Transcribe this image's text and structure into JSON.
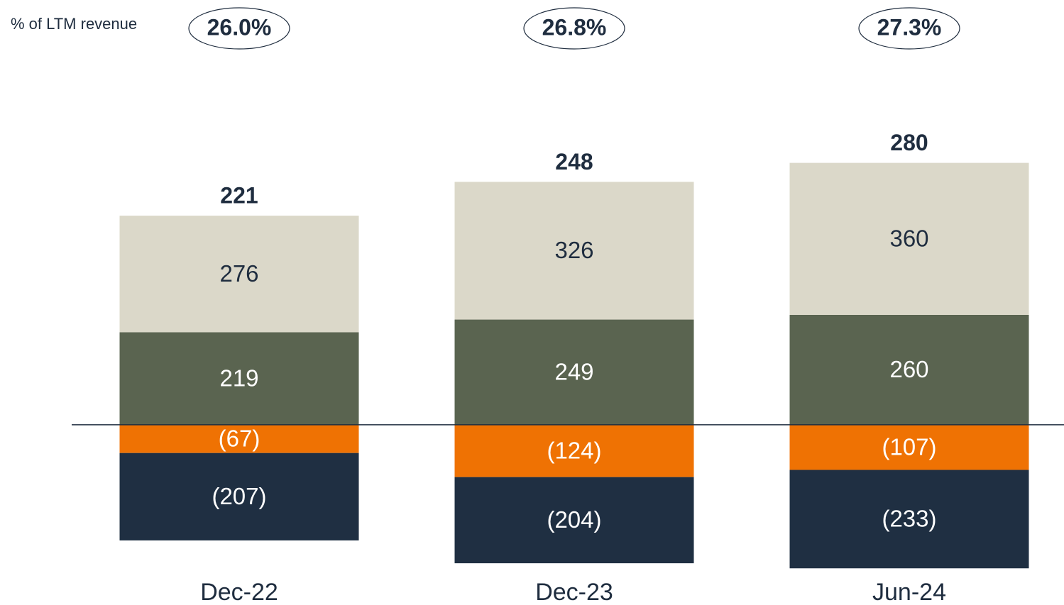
{
  "chart_data": {
    "type": "stacked_bar",
    "categories": [
      "Dec-22",
      "Dec-23",
      "Jun-24"
    ],
    "series": [
      {
        "color": "#5a6450",
        "label_color": "#ffffff",
        "values": [
          219,
          249,
          260
        ]
      },
      {
        "color": "#dbd8c9",
        "label_color": "#1f2d3f",
        "values": [
          276,
          326,
          360
        ]
      },
      {
        "color": "#ef7203",
        "label_color": "#ffffff",
        "values": [
          -67,
          -124,
          -107
        ],
        "value_labels": [
          "(67)",
          "(124)",
          "(107)"
        ]
      },
      {
        "color": "#1f2f42",
        "label_color": "#ffffff",
        "values": [
          -207,
          -204,
          -233
        ],
        "value_labels": [
          "(207)",
          "(204)",
          "(233)"
        ]
      }
    ],
    "totals": [
      221,
      248,
      280
    ],
    "ltm_label": "% of LTM revenue",
    "ltm_values": [
      "26.0%",
      "26.8%",
      "27.3%"
    ],
    "ylim": [
      -400,
      700
    ]
  }
}
